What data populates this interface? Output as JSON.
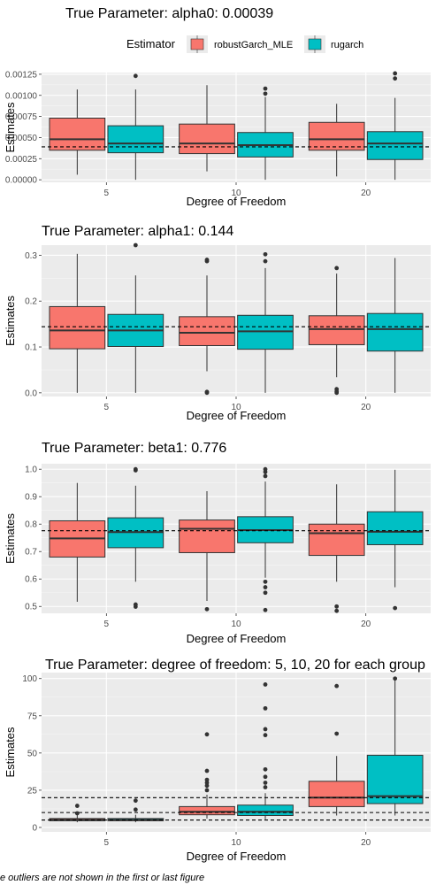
{
  "legend": {
    "title": "Estimator",
    "items": [
      {
        "name": "robustGarch_MLE",
        "color": "#F8766D"
      },
      {
        "name": "rugarch",
        "color": "#00BFC4"
      }
    ]
  },
  "footnote": "e outliers are not shown in the first or last figure",
  "chart_data": [
    {
      "type": "box",
      "title": "True Parameter: alpha0: 0.00039",
      "xlabel": "Degree of Freedom",
      "ylabel": "Estimates",
      "categories": [
        "5",
        "10",
        "20"
      ],
      "ylim": [
        -3e-05,
        0.00127
      ],
      "yticks": [
        0.0,
        0.00025,
        0.0005,
        0.00075,
        0.001,
        0.00125
      ],
      "ytick_labels": [
        "0.00000",
        "0.00025",
        "0.00050",
        "0.00075",
        "0.00100",
        "0.00125"
      ],
      "reference_lines": [
        0.00039
      ],
      "series": [
        {
          "name": "robustGarch_MLE",
          "boxes": [
            {
              "q1": 0.00035,
              "median": 0.00048,
              "q3": 0.00073,
              "whisker_low": 6e-05,
              "whisker_high": 0.00107,
              "outliers": []
            },
            {
              "q1": 0.00031,
              "median": 0.00043,
              "q3": 0.00066,
              "whisker_low": 0.0001,
              "whisker_high": 0.00112,
              "outliers": []
            },
            {
              "q1": 0.00035,
              "median": 0.00048,
              "q3": 0.00068,
              "whisker_low": 4e-05,
              "whisker_high": 0.0009,
              "outliers": []
            }
          ]
        },
        {
          "name": "rugarch",
          "boxes": [
            {
              "q1": 0.00032,
              "median": 0.00043,
              "q3": 0.00064,
              "whisker_low": 0.0,
              "whisker_high": 0.00107,
              "outliers": [
                0.00123
              ]
            },
            {
              "q1": 0.00027,
              "median": 0.00041,
              "q3": 0.00056,
              "whisker_low": 0.0,
              "whisker_high": 0.00098,
              "outliers": [
                0.00102,
                0.00108
              ]
            },
            {
              "q1": 0.00024,
              "median": 0.00043,
              "q3": 0.00057,
              "whisker_low": 0.0,
              "whisker_high": 0.00097,
              "outliers": [
                0.0012,
                0.00126
              ]
            }
          ]
        }
      ]
    },
    {
      "type": "box",
      "title": "True Parameter: alpha1: 0.144",
      "xlabel": "Degree of Freedom",
      "ylabel": "Estimates",
      "categories": [
        "5",
        "10",
        "20"
      ],
      "ylim": [
        -0.008,
        0.322
      ],
      "yticks": [
        0.0,
        0.1,
        0.2,
        0.3
      ],
      "ytick_labels": [
        "0.0",
        "0.1",
        "0.2",
        "0.3"
      ],
      "reference_lines": [
        0.144
      ],
      "series": [
        {
          "name": "robustGarch_MLE",
          "boxes": [
            {
              "q1": 0.096,
              "median": 0.136,
              "q3": 0.188,
              "whisker_low": 0.0,
              "whisker_high": 0.303,
              "outliers": []
            },
            {
              "q1": 0.103,
              "median": 0.131,
              "q3": 0.166,
              "whisker_low": 0.047,
              "whisker_high": 0.256,
              "outliers": [
                0.0,
                0.002,
                0.287,
                0.29
              ]
            },
            {
              "q1": 0.105,
              "median": 0.139,
              "q3": 0.168,
              "whisker_low": 0.034,
              "whisker_high": 0.26,
              "outliers": [
                0.0,
                0.003,
                0.008,
                0.272
              ]
            }
          ]
        },
        {
          "name": "rugarch",
          "boxes": [
            {
              "q1": 0.101,
              "median": 0.136,
              "q3": 0.171,
              "whisker_low": 0.0,
              "whisker_high": 0.256,
              "outliers": [
                0.322
              ]
            },
            {
              "q1": 0.095,
              "median": 0.134,
              "q3": 0.169,
              "whisker_low": 0.0,
              "whisker_high": 0.272,
              "outliers": [
                0.287,
                0.302
              ]
            },
            {
              "q1": 0.091,
              "median": 0.139,
              "q3": 0.173,
              "whisker_low": 0.0,
              "whisker_high": 0.294,
              "outliers": []
            }
          ]
        }
      ]
    },
    {
      "type": "box",
      "title": "True Parameter: beta1: 0.776",
      "xlabel": "Degree of Freedom",
      "ylabel": "Estimates",
      "categories": [
        "5",
        "10",
        "20"
      ],
      "ylim": [
        0.475,
        1.02
      ],
      "yticks": [
        0.5,
        0.6,
        0.7,
        0.8,
        0.9,
        1.0
      ],
      "ytick_labels": [
        "0.5",
        "0.6",
        "0.7",
        "0.8",
        "0.9",
        "1.0"
      ],
      "reference_lines": [
        0.776
      ],
      "series": [
        {
          "name": "robustGarch_MLE",
          "boxes": [
            {
              "q1": 0.68,
              "median": 0.748,
              "q3": 0.812,
              "whisker_low": 0.517,
              "whisker_high": 0.95,
              "outliers": []
            },
            {
              "q1": 0.696,
              "median": 0.783,
              "q3": 0.815,
              "whisker_low": 0.52,
              "whisker_high": 0.92,
              "outliers": [
                0.49
              ]
            },
            {
              "q1": 0.686,
              "median": 0.767,
              "q3": 0.8,
              "whisker_low": 0.59,
              "whisker_high": 0.945,
              "outliers": [
                0.484,
                0.5
              ]
            }
          ]
        },
        {
          "name": "rugarch",
          "boxes": [
            {
              "q1": 0.714,
              "median": 0.771,
              "q3": 0.823,
              "whisker_low": 0.59,
              "whisker_high": 0.94,
              "outliers": [
                0.499,
                0.507,
                0.996,
                1.0
              ]
            },
            {
              "q1": 0.732,
              "median": 0.778,
              "q3": 0.827,
              "whisker_low": 0.605,
              "whisker_high": 0.955,
              "outliers": [
                0.487,
                0.55,
                0.57,
                0.59,
                0.975,
                0.99,
                1.0
              ]
            },
            {
              "q1": 0.725,
              "median": 0.772,
              "q3": 0.845,
              "whisker_low": 0.57,
              "whisker_high": 0.998,
              "outliers": [
                0.494
              ]
            }
          ]
        }
      ]
    },
    {
      "type": "box",
      "title": "True Parameter: degree of freedom: 5, 10, 20 for each group",
      "xlabel": "Degree of Freedom",
      "ylabel": "Estimates",
      "categories": [
        "5",
        "10",
        "20"
      ],
      "ylim": [
        -3,
        104
      ],
      "yticks": [
        0,
        25,
        50,
        75,
        100
      ],
      "ytick_labels": [
        "0",
        "25",
        "50",
        "75",
        "100"
      ],
      "reference_lines": [
        5,
        10,
        20
      ],
      "series": [
        {
          "name": "robustGarch_MLE",
          "boxes": [
            {
              "q1": 4.5,
              "median": 5.0,
              "q3": 6.0,
              "whisker_low": 3.5,
              "whisker_high": 8.5,
              "outliers": [
                9.5,
                14.5
              ]
            },
            {
              "q1": 8.5,
              "median": 10.5,
              "q3": 14.0,
              "whisker_low": 6.0,
              "whisker_high": 22.0,
              "outliers": [
                25,
                28,
                30,
                32,
                38,
                62.5
              ]
            },
            {
              "q1": 14.0,
              "median": 20.0,
              "q3": 31.0,
              "whisker_low": 8.0,
              "whisker_high": 48.0,
              "outliers": [
                63,
                95
              ]
            }
          ]
        },
        {
          "name": "rugarch",
          "boxes": [
            {
              "q1": 4.5,
              "median": 5.0,
              "q3": 6.0,
              "whisker_low": 3.5,
              "whisker_high": 8.5,
              "outliers": [
                12,
                18
              ]
            },
            {
              "q1": 8.0,
              "median": 10.5,
              "q3": 15.0,
              "whisker_low": 5.5,
              "whisker_high": 23.0,
              "outliers": [
                27,
                30,
                34,
                39,
                62,
                66,
                80,
                96
              ]
            },
            {
              "q1": 16.0,
              "median": 21.0,
              "q3": 48.5,
              "whisker_low": 8.0,
              "whisker_high": 99.0,
              "outliers": [
                100
              ]
            }
          ]
        }
      ]
    }
  ]
}
